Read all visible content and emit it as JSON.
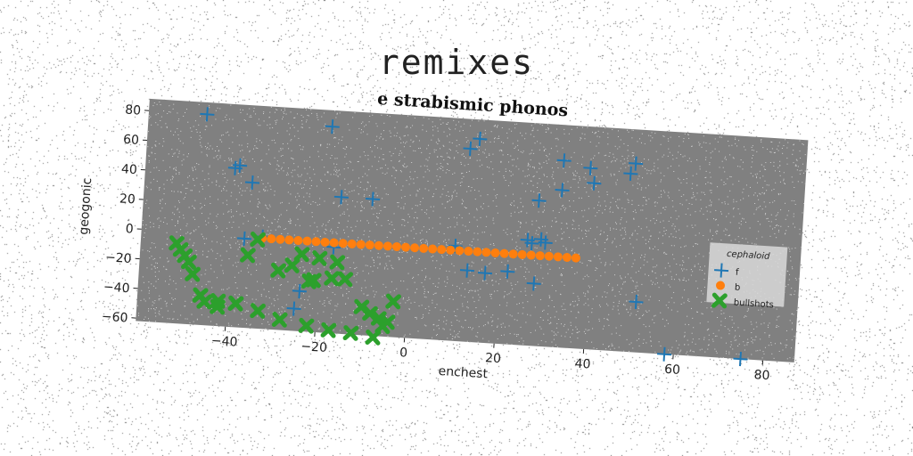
{
  "figure": {
    "suptitle": "remixes"
  },
  "chart_data": {
    "type": "scatter",
    "title": "e strabismic phonos",
    "xlabel": "enchest",
    "ylabel": "geogonic",
    "xlim": [
      -60,
      87
    ],
    "ylim": [
      -62,
      88
    ],
    "xticks": [
      -40,
      -20,
      0,
      20,
      40,
      60,
      80
    ],
    "yticks": [
      -60,
      -40,
      -20,
      0,
      20,
      40,
      60,
      80
    ],
    "grid": false,
    "legend": {
      "title": "cephaloid",
      "placement": "right"
    },
    "colors": {
      "plot_background": "#808080",
      "f": "#1f77b4",
      "b": "#ff7f0e",
      "bullshots": "#2ca02c"
    },
    "series": [
      {
        "name": "f",
        "marker": "plus",
        "x": [
          -47,
          -19,
          14,
          12,
          33,
          39,
          49,
          48,
          -40,
          -39,
          -36,
          -16,
          -9,
          40,
          33,
          28,
          29,
          30,
          26,
          27,
          10,
          13,
          17,
          22,
          28,
          51,
          58,
          75,
          -37,
          -33,
          -24,
          -25,
          -17
        ],
        "y": [
          80,
          77,
          75,
          68,
          64,
          60,
          65,
          58,
          45,
          47,
          36,
          30,
          30,
          50,
          44,
          36,
          10,
          8,
          9,
          7,
          2,
          -14,
          -15,
          -13,
          -20,
          -28,
          -62,
          -62,
          -2,
          0,
          -35,
          -47,
          -4
        ]
      },
      {
        "name": "b",
        "marker": "circle",
        "x": [
          -33,
          -31,
          -29,
          -27,
          -25,
          -23,
          -21,
          -19,
          -17,
          -15,
          -13,
          -11,
          -9,
          -7,
          -5,
          -3,
          -1,
          1,
          3,
          5,
          7,
          9,
          11,
          13,
          15,
          17,
          19,
          21,
          23,
          25,
          27,
          29,
          31,
          33,
          35,
          37
        ],
        "y": [
          -1,
          -1,
          -1,
          -1,
          -1,
          -1,
          -1,
          -1,
          -1,
          -1,
          -1,
          -1,
          -1,
          -1,
          -1,
          -1,
          -1,
          -1,
          -1,
          -1,
          -1,
          -1,
          -1,
          -1,
          -1,
          -1,
          -1,
          -1,
          -1,
          -1,
          -1,
          -1,
          -1,
          -1,
          -1,
          -1
        ]
      },
      {
        "name": "bullshots",
        "marker": "X",
        "x": [
          -52,
          -51,
          -50,
          -49,
          -48,
          -46,
          -45,
          -42,
          -38,
          -34,
          -36,
          -29,
          -26,
          -24,
          -20,
          -16,
          -22,
          -21,
          -17,
          -14,
          -10,
          -8,
          -6,
          -4,
          -5,
          -3,
          -46,
          -42,
          -38,
          -33,
          -28,
          -22,
          -17,
          -12,
          -7
        ],
        "y": [
          -8,
          -12,
          -16,
          -20,
          -28,
          -42,
          -46,
          -49,
          -46,
          -2,
          -13,
          -22,
          -18,
          -10,
          -12,
          -14,
          -28,
          -27,
          -25,
          -25,
          -43,
          -47,
          -50,
          -52,
          -55,
          -38,
          -42,
          -45,
          -46,
          -50,
          -55,
          -58,
          -60,
          -61,
          -63
        ]
      }
    ]
  }
}
